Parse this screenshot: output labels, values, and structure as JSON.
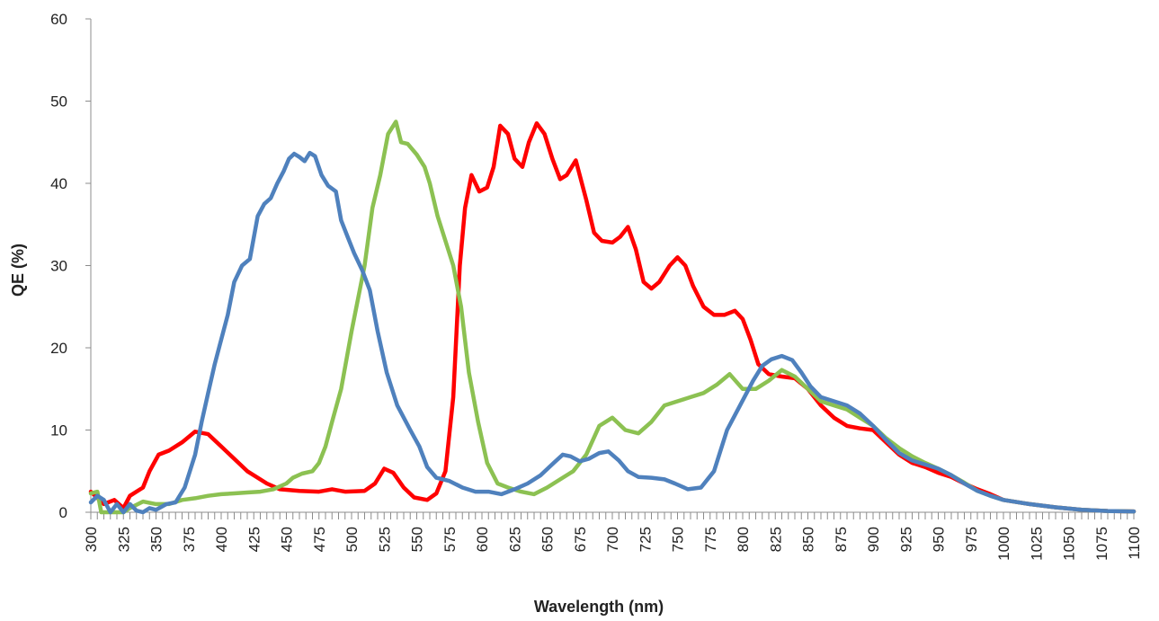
{
  "chart_data": {
    "type": "line",
    "title": "",
    "xlabel": "Wavelength (nm)",
    "ylabel": "QE (%)",
    "xlim": [
      300,
      1100
    ],
    "ylim": [
      0,
      60
    ],
    "x_ticks": [
      300,
      325,
      350,
      375,
      400,
      425,
      450,
      475,
      500,
      525,
      550,
      575,
      600,
      625,
      650,
      675,
      700,
      725,
      750,
      775,
      800,
      825,
      850,
      875,
      900,
      925,
      950,
      975,
      1000,
      1025,
      1050,
      1075,
      1100
    ],
    "y_ticks": [
      0,
      10,
      20,
      30,
      40,
      50,
      60
    ],
    "grid": false,
    "legend": "none",
    "series": [
      {
        "color": "#ff0000",
        "points": [
          [
            300,
            2.5
          ],
          [
            310,
            1
          ],
          [
            318,
            1.5
          ],
          [
            325,
            0.5
          ],
          [
            330,
            2
          ],
          [
            340,
            3
          ],
          [
            345,
            5
          ],
          [
            352,
            7
          ],
          [
            360,
            7.5
          ],
          [
            370,
            8.5
          ],
          [
            380,
            9.8
          ],
          [
            390,
            9.5
          ],
          [
            400,
            8
          ],
          [
            410,
            6.5
          ],
          [
            420,
            5
          ],
          [
            435,
            3.5
          ],
          [
            445,
            2.8
          ],
          [
            460,
            2.6
          ],
          [
            475,
            2.5
          ],
          [
            485,
            2.8
          ],
          [
            495,
            2.5
          ],
          [
            510,
            2.6
          ],
          [
            518,
            3.5
          ],
          [
            525,
            5.3
          ],
          [
            532,
            4.8
          ],
          [
            540,
            3
          ],
          [
            548,
            1.8
          ],
          [
            558,
            1.5
          ],
          [
            565,
            2.3
          ],
          [
            572,
            5
          ],
          [
            578,
            14
          ],
          [
            583,
            30
          ],
          [
            587,
            37
          ],
          [
            592,
            41
          ],
          [
            598,
            39
          ],
          [
            604,
            39.5
          ],
          [
            609,
            42
          ],
          [
            614,
            47
          ],
          [
            620,
            46
          ],
          [
            625,
            43
          ],
          [
            631,
            42
          ],
          [
            636,
            45
          ],
          [
            642,
            47.3
          ],
          [
            648,
            46
          ],
          [
            654,
            43
          ],
          [
            660,
            40.5
          ],
          [
            665,
            41
          ],
          [
            672,
            42.8
          ],
          [
            680,
            38
          ],
          [
            686,
            34
          ],
          [
            692,
            33
          ],
          [
            700,
            32.8
          ],
          [
            706,
            33.5
          ],
          [
            712,
            34.7
          ],
          [
            718,
            32
          ],
          [
            724,
            28
          ],
          [
            730,
            27.2
          ],
          [
            736,
            28
          ],
          [
            744,
            30
          ],
          [
            750,
            31
          ],
          [
            756,
            30
          ],
          [
            762,
            27.5
          ],
          [
            770,
            25
          ],
          [
            778,
            24
          ],
          [
            786,
            24
          ],
          [
            794,
            24.5
          ],
          [
            800,
            23.5
          ],
          [
            806,
            21
          ],
          [
            812,
            18
          ],
          [
            820,
            16.8
          ],
          [
            830,
            16.5
          ],
          [
            840,
            16.3
          ],
          [
            850,
            15
          ],
          [
            860,
            13
          ],
          [
            870,
            11.5
          ],
          [
            880,
            10.5
          ],
          [
            890,
            10.2
          ],
          [
            900,
            10
          ],
          [
            910,
            8.5
          ],
          [
            920,
            7
          ],
          [
            930,
            6
          ],
          [
            940,
            5.5
          ],
          [
            950,
            4.8
          ],
          [
            960,
            4.3
          ],
          [
            970,
            3.5
          ],
          [
            980,
            2.8
          ],
          [
            990,
            2.2
          ],
          [
            1000,
            1.5
          ],
          [
            1020,
            1
          ],
          [
            1040,
            0.6
          ],
          [
            1060,
            0.3
          ],
          [
            1080,
            0.15
          ],
          [
            1100,
            0.1
          ]
        ]
      },
      {
        "color": "#8cc152",
        "points": [
          [
            300,
            2.3
          ],
          [
            305,
            2.5
          ],
          [
            308,
            0
          ],
          [
            315,
            0
          ],
          [
            325,
            0
          ],
          [
            330,
            0.5
          ],
          [
            340,
            1.3
          ],
          [
            350,
            1
          ],
          [
            360,
            1
          ],
          [
            370,
            1.5
          ],
          [
            380,
            1.7
          ],
          [
            390,
            2
          ],
          [
            400,
            2.2
          ],
          [
            410,
            2.3
          ],
          [
            420,
            2.4
          ],
          [
            430,
            2.5
          ],
          [
            440,
            2.8
          ],
          [
            450,
            3.5
          ],
          [
            455,
            4.2
          ],
          [
            462,
            4.7
          ],
          [
            470,
            5
          ],
          [
            475,
            6
          ],
          [
            480,
            8
          ],
          [
            485,
            11
          ],
          [
            492,
            15
          ],
          [
            500,
            22
          ],
          [
            510,
            30
          ],
          [
            516,
            37
          ],
          [
            522,
            41
          ],
          [
            528,
            46
          ],
          [
            534,
            47.5
          ],
          [
            538,
            45
          ],
          [
            543,
            44.8
          ],
          [
            550,
            43.5
          ],
          [
            556,
            42
          ],
          [
            560,
            40
          ],
          [
            566,
            36
          ],
          [
            572,
            33
          ],
          [
            578,
            30
          ],
          [
            584,
            25
          ],
          [
            590,
            17
          ],
          [
            597,
            11
          ],
          [
            604,
            6
          ],
          [
            612,
            3.5
          ],
          [
            620,
            3
          ],
          [
            630,
            2.5
          ],
          [
            640,
            2.2
          ],
          [
            650,
            3
          ],
          [
            660,
            4
          ],
          [
            670,
            5
          ],
          [
            680,
            7
          ],
          [
            690,
            10.5
          ],
          [
            700,
            11.5
          ],
          [
            710,
            10
          ],
          [
            720,
            9.6
          ],
          [
            730,
            11
          ],
          [
            740,
            13
          ],
          [
            750,
            13.5
          ],
          [
            760,
            14
          ],
          [
            770,
            14.5
          ],
          [
            780,
            15.5
          ],
          [
            790,
            16.8
          ],
          [
            800,
            15
          ],
          [
            810,
            15
          ],
          [
            820,
            16
          ],
          [
            830,
            17.3
          ],
          [
            840,
            16.5
          ],
          [
            850,
            15
          ],
          [
            860,
            13.5
          ],
          [
            870,
            13
          ],
          [
            880,
            12.5
          ],
          [
            890,
            11.5
          ],
          [
            900,
            10.5
          ],
          [
            910,
            9
          ],
          [
            920,
            7.8
          ],
          [
            930,
            6.8
          ],
          [
            940,
            6
          ],
          [
            950,
            5.3
          ],
          [
            960,
            4.5
          ],
          [
            970,
            3.6
          ],
          [
            980,
            2.6
          ],
          [
            990,
            2
          ],
          [
            1000,
            1.5
          ],
          [
            1020,
            1
          ],
          [
            1040,
            0.6
          ],
          [
            1060,
            0.3
          ],
          [
            1080,
            0.15
          ],
          [
            1100,
            0.1
          ]
        ]
      },
      {
        "color": "#4f81bd",
        "points": [
          [
            300,
            1.2
          ],
          [
            305,
            2
          ],
          [
            310,
            1.5
          ],
          [
            315,
            0
          ],
          [
            320,
            1
          ],
          [
            325,
            0
          ],
          [
            330,
            1
          ],
          [
            335,
            0.2
          ],
          [
            340,
            0
          ],
          [
            345,
            0.5
          ],
          [
            350,
            0.3
          ],
          [
            358,
            1
          ],
          [
            365,
            1.2
          ],
          [
            372,
            3
          ],
          [
            380,
            7
          ],
          [
            385,
            11
          ],
          [
            390,
            14.5
          ],
          [
            395,
            18
          ],
          [
            400,
            21
          ],
          [
            405,
            24
          ],
          [
            410,
            28
          ],
          [
            416,
            30
          ],
          [
            422,
            30.8
          ],
          [
            428,
            36
          ],
          [
            433,
            37.5
          ],
          [
            438,
            38.2
          ],
          [
            443,
            40
          ],
          [
            448,
            41.5
          ],
          [
            452,
            43
          ],
          [
            456,
            43.6
          ],
          [
            460,
            43.2
          ],
          [
            464,
            42.7
          ],
          [
            468,
            43.7
          ],
          [
            472,
            43.3
          ],
          [
            477,
            41
          ],
          [
            482,
            39.7
          ],
          [
            488,
            39
          ],
          [
            492,
            35.5
          ],
          [
            497,
            33.5
          ],
          [
            502,
            31.5
          ],
          [
            508,
            29.5
          ],
          [
            514,
            27
          ],
          [
            520,
            22
          ],
          [
            527,
            17
          ],
          [
            535,
            13
          ],
          [
            545,
            10
          ],
          [
            552,
            8
          ],
          [
            558,
            5.5
          ],
          [
            565,
            4.2
          ],
          [
            575,
            3.8
          ],
          [
            585,
            3
          ],
          [
            595,
            2.5
          ],
          [
            605,
            2.5
          ],
          [
            615,
            2.2
          ],
          [
            625,
            2.8
          ],
          [
            635,
            3.5
          ],
          [
            645,
            4.5
          ],
          [
            655,
            6
          ],
          [
            662,
            7
          ],
          [
            668,
            6.8
          ],
          [
            675,
            6.2
          ],
          [
            682,
            6.5
          ],
          [
            690,
            7.2
          ],
          [
            697,
            7.4
          ],
          [
            705,
            6.3
          ],
          [
            712,
            5
          ],
          [
            720,
            4.3
          ],
          [
            730,
            4.2
          ],
          [
            740,
            4
          ],
          [
            748,
            3.5
          ],
          [
            758,
            2.8
          ],
          [
            768,
            3
          ],
          [
            778,
            5
          ],
          [
            788,
            10
          ],
          [
            798,
            13
          ],
          [
            808,
            16
          ],
          [
            815,
            17.8
          ],
          [
            822,
            18.6
          ],
          [
            830,
            19
          ],
          [
            838,
            18.5
          ],
          [
            845,
            17
          ],
          [
            852,
            15.3
          ],
          [
            860,
            14
          ],
          [
            870,
            13.5
          ],
          [
            880,
            13
          ],
          [
            890,
            12
          ],
          [
            900,
            10.5
          ],
          [
            910,
            8.8
          ],
          [
            920,
            7.2
          ],
          [
            930,
            6.3
          ],
          [
            940,
            5.8
          ],
          [
            950,
            5.3
          ],
          [
            960,
            4.5
          ],
          [
            970,
            3.5
          ],
          [
            980,
            2.6
          ],
          [
            990,
            2
          ],
          [
            1000,
            1.5
          ],
          [
            1020,
            1
          ],
          [
            1040,
            0.6
          ],
          [
            1060,
            0.3
          ],
          [
            1080,
            0.15
          ],
          [
            1100,
            0.1
          ]
        ]
      }
    ]
  }
}
